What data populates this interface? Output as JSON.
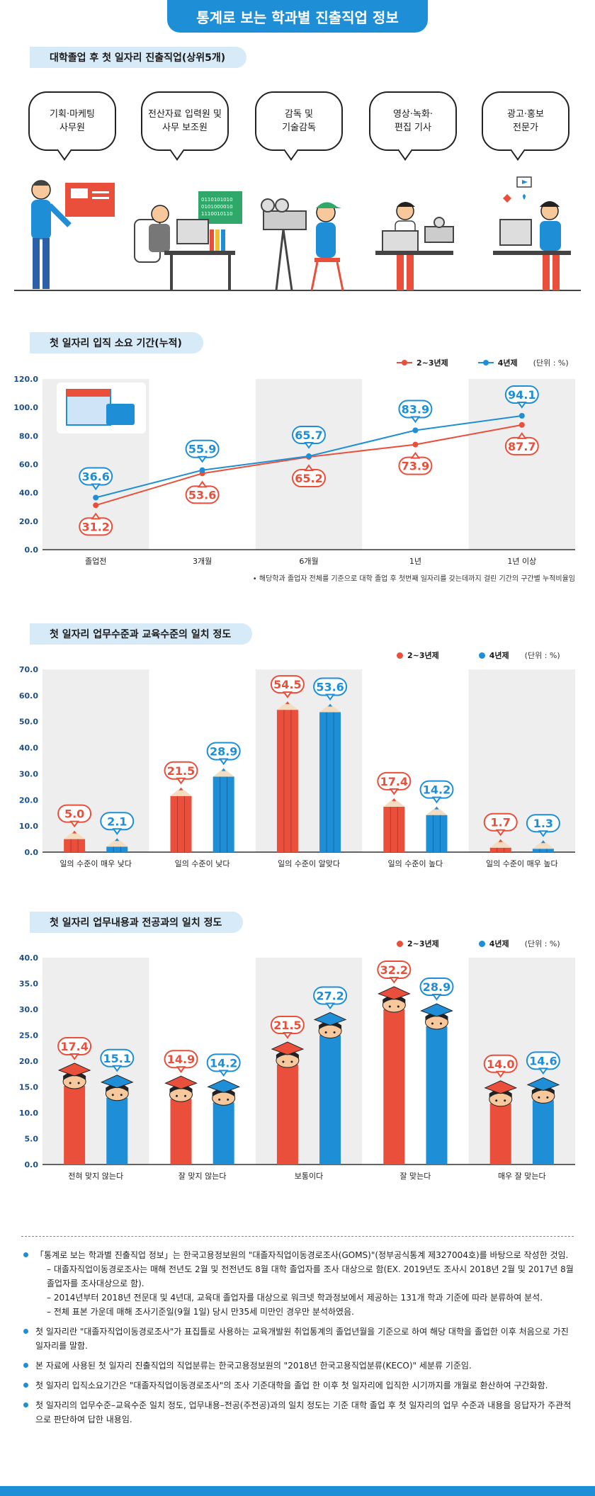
{
  "header": {
    "title": "통계로 보는 학과별 진출직업 정보"
  },
  "section1": {
    "title": "대학졸업 후 첫 일자리 진출직업(상위5개)",
    "jobs": [
      "기획·마케팅\n사무원",
      "전산자료 입력원 및\n사무 보조원",
      "감독 및\n기술감독",
      "영상·녹화·\n편집 기사",
      "광고·홍보\n전문가"
    ],
    "binary_text": [
      "0110101010",
      "0101000010",
      "1110010110"
    ]
  },
  "legend": {
    "s1": "2~3년제",
    "s2": "4년제",
    "unit": "(단위 : %)"
  },
  "colors": {
    "red": "#e94f3b",
    "blue": "#1e8fd6",
    "band": "#eeeeee"
  },
  "chart_data": [
    {
      "type": "line",
      "title": "첫 일자리 입직 소요 기간(누적)",
      "categories": [
        "졸업전",
        "3개월",
        "6개월",
        "1년",
        "1년 이상"
      ],
      "series": [
        {
          "name": "2~3년제",
          "values": [
            31.2,
            53.6,
            65.2,
            73.9,
            87.7
          ]
        },
        {
          "name": "4년제",
          "values": [
            36.6,
            55.9,
            65.7,
            83.9,
            94.1
          ]
        }
      ],
      "ylim": [
        0,
        120
      ],
      "yticks": [
        "0.0",
        "20.0",
        "40.0",
        "60.0",
        "80.0",
        "100.0",
        "120.0"
      ],
      "footnote": "해당학과 졸업자 전체를 기준으로 대학 졸업 후 첫번째 일자리를 갖는데까지 걸린 기간의 구간별 누적비율임"
    },
    {
      "type": "bar",
      "title": "첫 일자리 업무수준과 교육수준의 일치 정도",
      "categories": [
        "일의 수준이 매우 낮다",
        "일의 수준이 낮다",
        "일의 수준이 알맞다",
        "일의 수준이 높다",
        "일의 수준이 매우 높다"
      ],
      "series": [
        {
          "name": "2~3년제",
          "values": [
            5.0,
            21.5,
            54.5,
            17.4,
            1.7
          ]
        },
        {
          "name": "4년제",
          "values": [
            2.1,
            28.9,
            53.6,
            14.2,
            1.3
          ]
        }
      ],
      "ylim": [
        0,
        70
      ],
      "yticks": [
        "0.0",
        "10.0",
        "20.0",
        "30.0",
        "40.0",
        "50.0",
        "60.0",
        "70.0"
      ]
    },
    {
      "type": "bar",
      "title": "첫 일자리 업무내용과 전공과의 일치 정도",
      "categories": [
        "전혀 맞지 않는다",
        "잘 맞지 않는다",
        "보통이다",
        "잘 맞는다",
        "매우 잘 맞는다"
      ],
      "series": [
        {
          "name": "2~3년제",
          "values": [
            17.4,
            14.9,
            21.5,
            32.2,
            14.0
          ]
        },
        {
          "name": "4년제",
          "values": [
            15.1,
            14.2,
            27.2,
            28.9,
            14.6
          ]
        }
      ],
      "ylim": [
        0,
        40
      ],
      "yticks": [
        "0.0",
        "5.0",
        "10.0",
        "15.0",
        "20.0",
        "25.0",
        "30.0",
        "35.0",
        "40.0"
      ]
    }
  ],
  "notes": [
    {
      "text": "「통계로 보는 학과별 진출직업 정보」는 한국고용정보원의 \"대졸자직업이동경로조사(GOMS)\"(정부공식통계 제327004호)를 바탕으로 작성한 것임.",
      "subs": [
        "– 대졸자직업이동경로조사는 매해 전년도 2월 및 전전년도 8월 대학 졸업자를 조사 대상으로 함(EX. 2019년도 조사시 2018년 2월 및 2017년 8월 졸업자를 조사대상으로 함).",
        "– 2014년부터 2018년 전문대 및 4년대, 교육대 졸업자를 대상으로 워크넷 학과정보에서 제공하는 131개 학과 기준에 따라 분류하여 분석.",
        "– 전체 표본 가운데 매해 조사기준일(9월 1일) 당시 만35세 미만인 경우만 분석하였음."
      ]
    },
    {
      "text": "첫 일자리란 \"대졸자직업이동경로조사\"가 표집틀로 사용하는 교육개발원 취업통계의 졸업년월을 기준으로 하여 해당 대학을 졸업한 이후 처음으로 가진 일자리를 말함.",
      "subs": []
    },
    {
      "text": "본 자료에 사용된 첫 일자리 진출직업의 직업분류는 한국고용정보원의 \"2018년 한국고용직업분류(KECO)\" 세분류 기준임.",
      "subs": []
    },
    {
      "text": "첫 일자리 입직소요기간은 \"대졸자직업이동경로조사\"의 조사 기준대학을 졸업 한 이후 첫 일자리에 입직한 시기까지를 개월로 환산하여 구간화함.",
      "subs": []
    },
    {
      "text": "첫 일자리의 업무수준–교육수준 일치 정도, 업무내용–전공(주전공)과의 일치 정도는 기준 대학 졸업 후 첫 일자리의 업무 수준과 내용을 응답자가 주관적으로 판단하여 답한 내용임.",
      "subs": []
    }
  ]
}
